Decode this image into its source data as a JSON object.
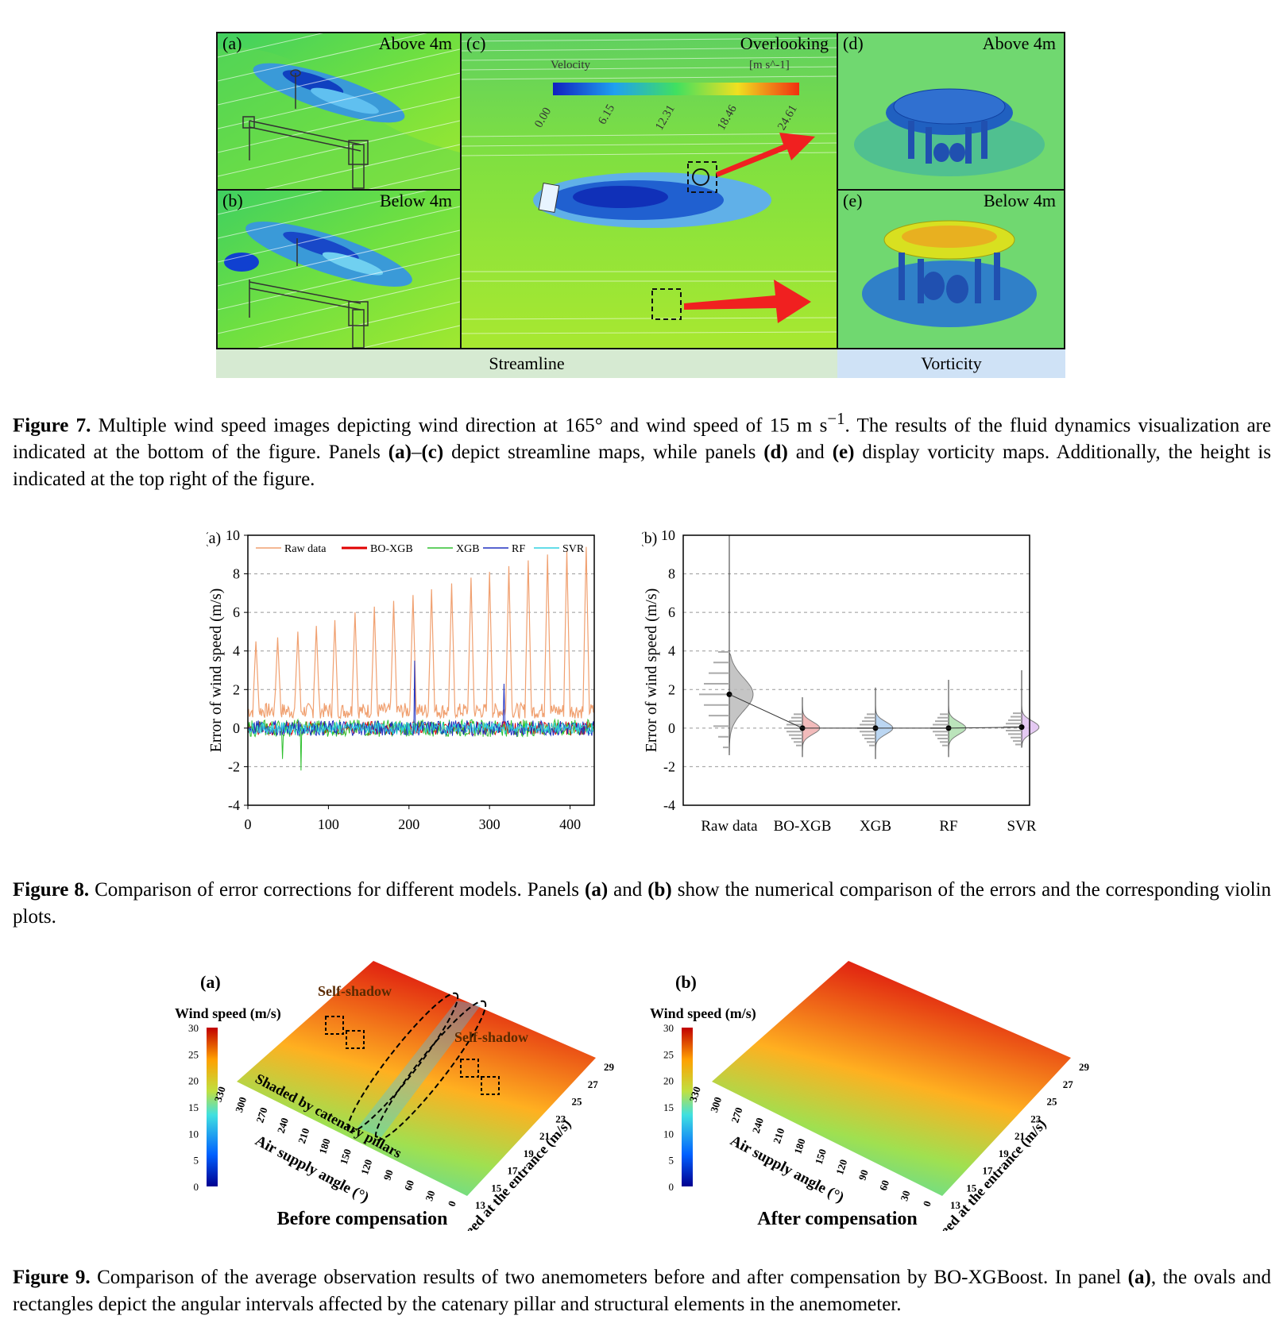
{
  "figure7": {
    "panels": {
      "a": {
        "label": "(a)",
        "height": "Above 4m"
      },
      "b": {
        "label": "(b)",
        "height": "Below 4m"
      },
      "c": {
        "label": "(c)",
        "view": "Overlooking"
      },
      "d": {
        "label": "(d)",
        "height": "Above 4m"
      },
      "e": {
        "label": "(e)",
        "height": "Below 4m"
      }
    },
    "colorbar": {
      "title": "Velocity",
      "unit": "[m s^-1]",
      "ticks": [
        "0.00",
        "6.15",
        "12.31",
        "18.46",
        "24.61"
      ]
    },
    "bands": {
      "streamline": "Streamline",
      "vorticity": "Vorticity"
    },
    "caption": {
      "label": "Figure 7.",
      "t1": " Multiple wind speed images depicting wind direction at 165° and wind speed of 15 m s",
      "sup": "−1",
      "t2": ". The results of the fluid dynamics visualization are indicated at the bottom of the figure. Panels ",
      "p1": "(a)",
      "t3": "–",
      "p2": "(c)",
      "t4": " depict streamline maps, while panels ",
      "p3": "(d)",
      "t5": " and ",
      "p4": "(e)",
      "t6": " display vorticity maps. Additionally, the height is indicated at the top right of the figure."
    }
  },
  "figure8": {
    "caption": {
      "label": "Figure 8.",
      "t1": " Comparison of error corrections for different models. Panels ",
      "p1": "(a)",
      "t2": " and ",
      "p2": "(b)",
      "t3": " show the numerical comparison of the errors and the corresponding violin plots."
    }
  },
  "chart_data": [
    {
      "type": "line",
      "panel_label": "(a)",
      "ylabel": "Error of wind speed (m/s)",
      "xlabel": "",
      "xlim": [
        0,
        430
      ],
      "ylim": [
        -4,
        10
      ],
      "xticks": [
        "0",
        "100",
        "200",
        "300",
        "400"
      ],
      "yticks": [
        "-4",
        "-2",
        "0",
        "2",
        "4",
        "6",
        "8",
        "10"
      ],
      "grid": "dashed horizontal",
      "legend": "top",
      "series": [
        {
          "name": "Raw data",
          "color": "#f0a070",
          "peaks": [
            {
              "x": 10,
              "y": 4.5
            },
            {
              "x": 37,
              "y": 4.7
            },
            {
              "x": 62,
              "y": 5.0
            },
            {
              "x": 85,
              "y": 5.3
            },
            {
              "x": 108,
              "y": 5.6
            },
            {
              "x": 133,
              "y": 6.0
            },
            {
              "x": 157,
              "y": 6.3
            },
            {
              "x": 181,
              "y": 6.6
            },
            {
              "x": 205,
              "y": 6.9
            },
            {
              "x": 228,
              "y": 7.2
            },
            {
              "x": 253,
              "y": 7.5
            },
            {
              "x": 277,
              "y": 7.8
            },
            {
              "x": 300,
              "y": 8.1
            },
            {
              "x": 324,
              "y": 8.4
            },
            {
              "x": 348,
              "y": 8.7
            },
            {
              "x": 372,
              "y": 9.0
            },
            {
              "x": 396,
              "y": 9.2
            },
            {
              "x": 420,
              "y": 9.4
            }
          ],
          "baseline": 0.9
        },
        {
          "name": "BO-XGB",
          "color": "#e00000",
          "amplitude": 0.35
        },
        {
          "name": "XGB",
          "color": "#30c030",
          "amplitude": 0.45,
          "spikes": [
            {
              "x": 43,
              "y": -1.6
            },
            {
              "x": 66,
              "y": -2.2
            }
          ]
        },
        {
          "name": "RF",
          "color": "#2030c0",
          "amplitude": 0.4,
          "spikes": [
            {
              "x": 207,
              "y": 3.5
            },
            {
              "x": 318,
              "y": 2.3
            }
          ]
        },
        {
          "name": "SVR",
          "color": "#30d0e0",
          "amplitude": 0.3
        }
      ]
    },
    {
      "type": "violin",
      "panel_label": "(b)",
      "ylabel": "Error of wind speed (m/s)",
      "ylim": [
        -4,
        10
      ],
      "yticks": [
        "-4",
        "-2",
        "0",
        "2",
        "4",
        "6",
        "8",
        "10"
      ],
      "categories": [
        "Raw data",
        "BO-XGB",
        "XGB",
        "RF",
        "SVR"
      ],
      "means": [
        1.75,
        0.0,
        0.0,
        0.0,
        0.05
      ],
      "whisker_low": [
        -1.4,
        -1.5,
        -1.6,
        -1.5,
        -1.0
      ],
      "whisker_high": [
        3.9,
        1.6,
        2.1,
        2.5,
        3.0
      ],
      "max": [
        10.0,
        1.6,
        2.1,
        2.5,
        3.0
      ],
      "colors": [
        "#bbbbbb",
        "#f0b0b0",
        "#b0d0f0",
        "#b0e0b0",
        "#e0c0f0"
      ]
    },
    {
      "type": "surface",
      "panel_label": "(a)",
      "title": "Before compensation",
      "colorbar_title": "Wind speed (m/s)",
      "colorbar_ticks": [
        "0",
        "5",
        "10",
        "15",
        "20",
        "25",
        "30"
      ],
      "xlabel": "Air supply angle (°)",
      "xticks": [
        "330",
        "300",
        "270",
        "240",
        "210",
        "180",
        "150",
        "120",
        "90",
        "60",
        "30",
        "0"
      ],
      "ylabel": "Wind speed at the entrance (m/s)",
      "yticks": [
        "13",
        "15",
        "17",
        "19",
        "21",
        "23",
        "25",
        "27",
        "29"
      ],
      "annotations": [
        "Self-shadow",
        "Self-shadow",
        "Shaded by catenary pillars"
      ]
    },
    {
      "type": "surface",
      "panel_label": "(b)",
      "title": "After compensation",
      "colorbar_title": "Wind speed (m/s)",
      "colorbar_ticks": [
        "0",
        "5",
        "10",
        "15",
        "20",
        "25",
        "30"
      ],
      "xlabel": "Air supply angle (°)",
      "xticks": [
        "330",
        "300",
        "270",
        "240",
        "210",
        "180",
        "150",
        "120",
        "90",
        "60",
        "30",
        "0"
      ],
      "ylabel": "Wind speed at the entrance (m/s)",
      "yticks": [
        "13",
        "15",
        "17",
        "19",
        "21",
        "23",
        "25",
        "27",
        "29"
      ]
    }
  ],
  "figure9": {
    "caption": {
      "label": "Figure 9.",
      "t1": " Comparison of the average observation results of two anemometers before and after compensation by BO-XGBoost. In panel ",
      "p1": "(a)",
      "t2": ", the ovals and rectangles depict the angular intervals affected by the catenary pillar and structural elements in the anemometer."
    }
  }
}
